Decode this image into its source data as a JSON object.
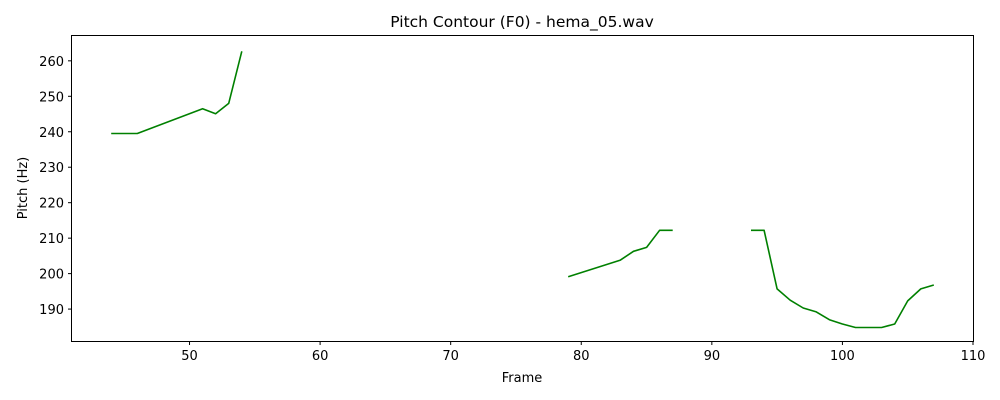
{
  "chart_data": {
    "type": "line",
    "title": "Pitch Contour (F0) - hema_05.wav",
    "xlabel": "Frame",
    "ylabel": "Pitch (Hz)",
    "xlim": [
      41,
      110
    ],
    "ylim": [
      181,
      267
    ],
    "xticks": [
      50,
      60,
      70,
      80,
      90,
      100,
      110
    ],
    "yticks": [
      190,
      200,
      210,
      220,
      230,
      240,
      250,
      260
    ],
    "grid": false,
    "color": "#008000",
    "series": [
      {
        "segments": [
          [
            [
              44,
              239.5
            ],
            [
              46,
              239.5
            ],
            [
              51,
              246.5
            ],
            [
              52,
              245.1
            ],
            [
              53,
              248.0
            ],
            [
              54,
              262.7
            ]
          ],
          [
            [
              79,
              199.1
            ],
            [
              83,
              203.8
            ],
            [
              84,
              206.3
            ],
            [
              85,
              207.4
            ],
            [
              86,
              212.2
            ],
            [
              87,
              212.2
            ]
          ],
          [
            [
              93,
              212.2
            ],
            [
              94,
              212.2
            ],
            [
              95,
              195.7
            ],
            [
              96,
              192.5
            ],
            [
              97,
              190.3
            ],
            [
              98,
              189.2
            ],
            [
              99,
              187.0
            ],
            [
              100,
              185.8
            ],
            [
              101,
              184.8
            ],
            [
              102,
              184.8
            ],
            [
              103,
              184.8
            ],
            [
              104,
              185.8
            ],
            [
              105,
              192.3
            ],
            [
              106,
              195.7
            ],
            [
              107,
              196.8
            ]
          ]
        ]
      }
    ]
  }
}
